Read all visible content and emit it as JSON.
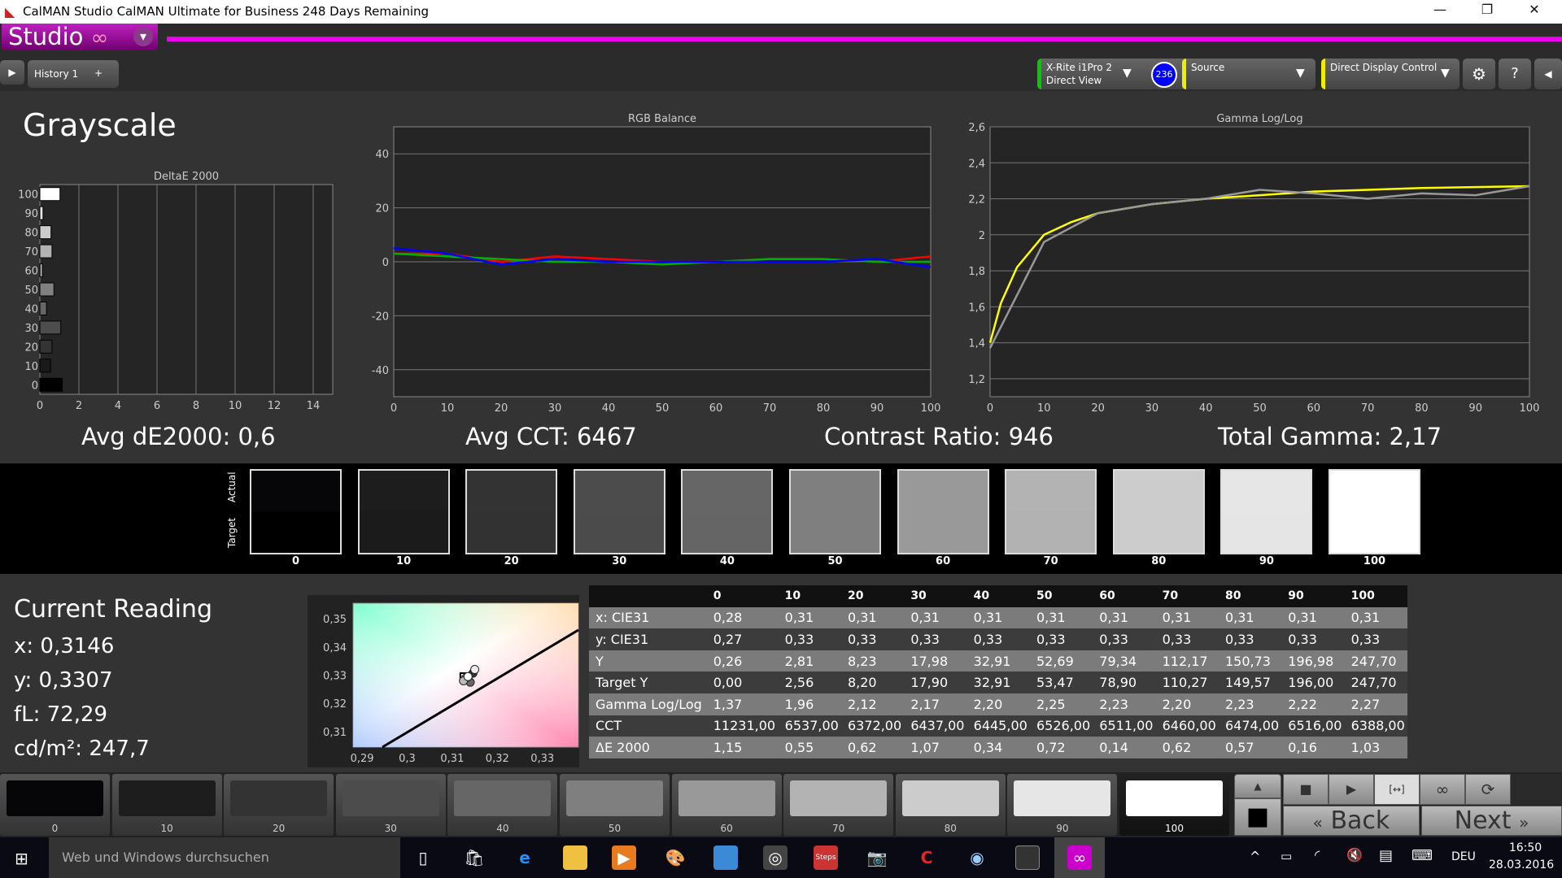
{
  "window": {
    "title": "CalMAN Studio CalMAN Ultimate for Business 248 Days Remaining",
    "minimize": "—",
    "restore": "❐",
    "close": "✕"
  },
  "studio": {
    "label": "Studio",
    "logo": "∞",
    "dropdown": "▾"
  },
  "tabs": [
    {
      "label": "History 1"
    }
  ],
  "tab_add": "+",
  "devices": {
    "meter_line1": "X-Rite i1Pro 2",
    "meter_line2": "Direct View",
    "meter_badge": "236",
    "source": "Source",
    "display": "Direct Display Control"
  },
  "colors": {
    "accent": "#f000f0",
    "meter_status": "#00cc00",
    "source_status": "#e0e000",
    "badge": "#0000ff",
    "red": "#ff0000",
    "green": "#00b000",
    "blue": "#0000ff",
    "target_gamma": "#ffff00",
    "measured_gamma": "#999999"
  },
  "page_title": "Grayscale",
  "summary": {
    "avg_de": "Avg dE2000: 0,6",
    "avg_cct": "Avg CCT: 6467",
    "contrast": "Contrast Ratio: 946",
    "gamma": "Total Gamma: 2,17"
  },
  "chart_data": [
    {
      "type": "bar",
      "title": "DeltaE 2000",
      "orientation": "horizontal",
      "categories": [
        "0",
        "10",
        "20",
        "30",
        "40",
        "50",
        "60",
        "70",
        "80",
        "90",
        "100"
      ],
      "values": [
        1.15,
        0.55,
        0.62,
        1.07,
        0.34,
        0.72,
        0.14,
        0.62,
        0.57,
        0.16,
        1.03
      ],
      "xlim": [
        0,
        15
      ],
      "xticks": [
        "0",
        "2",
        "4",
        "6",
        "8",
        "10",
        "12",
        "14"
      ],
      "grid": true
    },
    {
      "type": "line",
      "title": "RGB Balance",
      "x": [
        0,
        10,
        20,
        30,
        40,
        50,
        60,
        70,
        80,
        90,
        100
      ],
      "ylim": [
        -50,
        50
      ],
      "yticks": [
        "40",
        "20",
        "0",
        "-20",
        "-40"
      ],
      "xticks": [
        "0",
        "10",
        "20",
        "30",
        "40",
        "50",
        "60",
        "70",
        "80",
        "90",
        "100"
      ],
      "series": [
        {
          "color": "#ff0000",
          "values": [
            3,
            3,
            0,
            2,
            1,
            0,
            0,
            1,
            1,
            0,
            2
          ]
        },
        {
          "color": "#00b000",
          "values": [
            3,
            2,
            1,
            0,
            0,
            -1,
            0,
            1,
            1,
            0,
            0
          ]
        },
        {
          "color": "#0000ff",
          "values": [
            5,
            3,
            -1,
            1,
            0,
            0,
            0,
            0,
            0,
            1,
            -2
          ]
        }
      ],
      "grid": true
    },
    {
      "type": "line",
      "title": "Gamma Log/Log",
      "ylim": [
        1.1,
        2.6
      ],
      "yticks": [
        "2,6",
        "2,4",
        "2,2",
        "2",
        "1,8",
        "1,6",
        "1,4",
        "1,2"
      ],
      "xticks": [
        "0",
        "10",
        "20",
        "30",
        "40",
        "50",
        "60",
        "70",
        "80",
        "90",
        "100"
      ],
      "series": [
        {
          "color": "#ffff00",
          "x": [
            0,
            2,
            5,
            10,
            15,
            20,
            30,
            40,
            50,
            60,
            70,
            80,
            90,
            100
          ],
          "values": [
            1.4,
            1.62,
            1.82,
            2.0,
            2.07,
            2.12,
            2.17,
            2.2,
            2.22,
            2.24,
            2.25,
            2.26,
            2.265,
            2.27
          ]
        },
        {
          "color": "#999999",
          "x": [
            0,
            10,
            20,
            30,
            40,
            50,
            60,
            70,
            80,
            90,
            100
          ],
          "values": [
            1.37,
            1.96,
            2.12,
            2.17,
            2.2,
            2.25,
            2.23,
            2.2,
            2.23,
            2.22,
            2.27
          ]
        }
      ],
      "grid": true
    },
    {
      "type": "scatter",
      "title": "",
      "xlim": [
        0.288,
        0.338
      ],
      "ylim": [
        0.3045,
        0.3555
      ],
      "xticks": [
        "0,29",
        "0,3",
        "0,31",
        "0,32",
        "0,33"
      ],
      "yticks": [
        "0,35",
        "0,34",
        "0,33",
        "0,32",
        "0,31"
      ],
      "points": [
        [
          0.3146,
          0.3307
        ],
        [
          0.315,
          0.332
        ],
        [
          0.314,
          0.3275
        ],
        [
          0.313,
          0.329
        ],
        [
          0.3125,
          0.328
        ],
        [
          0.3135,
          0.3295
        ]
      ],
      "target": [
        0.3127,
        0.329
      ]
    }
  ],
  "swatch_labels": {
    "actual": "Actual",
    "target": "Target"
  },
  "swatches": [
    {
      "label": "0",
      "actual": "#060608",
      "target": "#000000"
    },
    {
      "label": "10",
      "actual": "#1d1d1d",
      "target": "#1b1b1b"
    },
    {
      "label": "20",
      "actual": "#333333",
      "target": "#323232"
    },
    {
      "label": "30",
      "actual": "#4c4c4c",
      "target": "#4b4b4b"
    },
    {
      "label": "40",
      "actual": "#666666",
      "target": "#656565"
    },
    {
      "label": "50",
      "actual": "#7f7f7f",
      "target": "#7f7f7f"
    },
    {
      "label": "60",
      "actual": "#999999",
      "target": "#999999"
    },
    {
      "label": "70",
      "actual": "#b3b3b3",
      "target": "#b2b2b2"
    },
    {
      "label": "80",
      "actual": "#cccccc",
      "target": "#cccccc"
    },
    {
      "label": "90",
      "actual": "#e6e6e6",
      "target": "#e5e5e5"
    },
    {
      "label": "100",
      "actual": "#ffffff",
      "target": "#ffffff"
    }
  ],
  "reading": {
    "title": "Current Reading",
    "x": "x: 0,3146",
    "y": "y: 0,3307",
    "fl": "fL: 72,29",
    "cdm": "cd/m²: 247,7"
  },
  "table": {
    "header": [
      "",
      "0",
      "10",
      "20",
      "30",
      "40",
      "50",
      "60",
      "70",
      "80",
      "90",
      "100"
    ],
    "rows": [
      [
        "x: CIE31",
        "0,28",
        "0,31",
        "0,31",
        "0,31",
        "0,31",
        "0,31",
        "0,31",
        "0,31",
        "0,31",
        "0,31",
        "0,31"
      ],
      [
        "y: CIE31",
        "0,27",
        "0,33",
        "0,33",
        "0,33",
        "0,33",
        "0,33",
        "0,33",
        "0,33",
        "0,33",
        "0,33",
        "0,33"
      ],
      [
        "Y",
        "0,26",
        "2,81",
        "8,23",
        "17,98",
        "32,91",
        "52,69",
        "79,34",
        "112,17",
        "150,73",
        "196,98",
        "247,70"
      ],
      [
        "Target Y",
        "0,00",
        "2,56",
        "8,20",
        "17,90",
        "32,91",
        "53,47",
        "78,90",
        "110,27",
        "149,57",
        "196,00",
        "247,70"
      ],
      [
        "Gamma Log/Log",
        "1,37",
        "1,96",
        "2,12",
        "2,17",
        "2,20",
        "2,25",
        "2,23",
        "2,20",
        "2,23",
        "2,22",
        "2,27"
      ],
      [
        "CCT",
        "11231,00",
        "6537,00",
        "6372,00",
        "6437,00",
        "6445,00",
        "6526,00",
        "6511,00",
        "6460,00",
        "6474,00",
        "6516,00",
        "6388,00"
      ],
      [
        "ΔE 2000",
        "1,15",
        "0,55",
        "0,62",
        "1,07",
        "0,34",
        "0,72",
        "0,14",
        "0,62",
        "0,57",
        "0,16",
        "1,03"
      ]
    ]
  },
  "controls": {
    "back": "Back",
    "next": "Next",
    "back_icon": "«",
    "next_icon": "»",
    "stop": "■",
    "play": "▶",
    "bracket": "[↔]",
    "loop": "∞",
    "refresh": "⟳",
    "up": "▲"
  },
  "taskbar": {
    "search_placeholder": "Web und Windows durchsuchen",
    "lang": "DEU",
    "time": "16:50",
    "date": "28.03.2016"
  }
}
